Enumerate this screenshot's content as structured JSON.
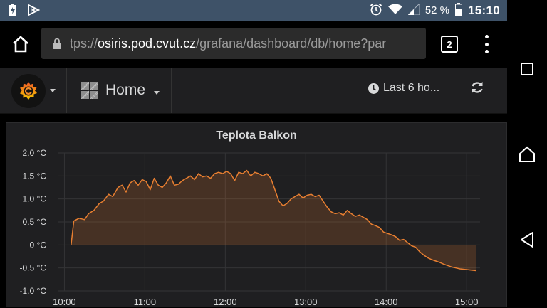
{
  "status_bar": {
    "battery_percent": "52 %",
    "time": "15:10",
    "left_icons": [
      "battery-charging-icon",
      "download-arrow-icon"
    ],
    "right_icons": [
      "alarm-icon",
      "wifi-icon",
      "signal-icon",
      "battery-icon"
    ]
  },
  "browser": {
    "url_prefix": "tps://",
    "url_host": "osiris.pod.cvut.cz",
    "url_path": "/grafana/dashboard/db/home?par",
    "tab_count": "2"
  },
  "grafana": {
    "dashboard_name": "Home",
    "time_range": "Last 6 ho...",
    "panel_title": "Teplota Balkon"
  },
  "colors": {
    "series": "#e87f31",
    "background": "#1f1f21",
    "status_bar": "#3e5268"
  },
  "chart_data": {
    "type": "area",
    "title": "Teplota Balkon",
    "xlabel": "",
    "ylabel": "",
    "y_tick_labels": [
      "2.0 °C",
      "1.5 °C",
      "1.0 °C",
      "0.5 °C",
      "0 °C",
      "-0.5 °C",
      "-1.0 °C"
    ],
    "y_ticks": [
      2.0,
      1.5,
      1.0,
      0.5,
      0.0,
      -0.5,
      -1.0
    ],
    "x_tick_labels": [
      "10:00",
      "11:00",
      "12:00",
      "13:00",
      "14:00",
      "15:00"
    ],
    "x_ticks": [
      "10:00",
      "11:00",
      "12:00",
      "13:00",
      "14:00",
      "15:00"
    ],
    "ylim": [
      -1.0,
      2.0
    ],
    "xlim": [
      "09:55",
      "15:10"
    ],
    "grid": true,
    "series": [
      {
        "x": [
          "10:05",
          "10:07",
          "10:11",
          "10:15",
          "10:18",
          "10:22",
          "10:26",
          "10:29",
          "10:33",
          "10:36",
          "10:40",
          "10:43",
          "10:46",
          "10:49",
          "10:52",
          "10:55",
          "10:58",
          "11:01",
          "11:04",
          "11:07",
          "11:10",
          "11:13",
          "11:16",
          "11:19",
          "11:22",
          "11:25",
          "11:28",
          "11:31",
          "11:34",
          "11:37",
          "11:40",
          "11:43",
          "11:46",
          "11:49",
          "11:52",
          "11:55",
          "11:58",
          "12:01",
          "12:04",
          "12:07",
          "12:10",
          "12:13",
          "12:16",
          "12:19",
          "12:22",
          "12:25",
          "12:28",
          "12:31",
          "12:34",
          "12:37",
          "12:40",
          "12:43",
          "12:46",
          "12:49",
          "12:52",
          "12:55",
          "12:58",
          "13:01",
          "13:04",
          "13:07",
          "13:10",
          "13:13",
          "13:16",
          "13:19",
          "13:22",
          "13:25",
          "13:28",
          "13:31",
          "13:34",
          "13:37",
          "13:40",
          "13:43",
          "13:46",
          "13:49",
          "13:52",
          "13:55",
          "13:58",
          "14:01",
          "14:04",
          "14:07",
          "14:10",
          "14:13",
          "14:16",
          "14:19",
          "14:22",
          "14:25",
          "14:28",
          "14:31",
          "14:34",
          "14:37",
          "14:40",
          "14:43",
          "14:46",
          "14:49",
          "14:52",
          "14:55",
          "14:58",
          "15:01",
          "15:04",
          "15:07"
        ],
        "y": [
          0.0,
          0.52,
          0.58,
          0.55,
          0.68,
          0.75,
          0.9,
          0.95,
          1.1,
          1.05,
          1.25,
          1.3,
          1.15,
          1.35,
          1.4,
          1.3,
          1.42,
          1.38,
          1.2,
          1.45,
          1.3,
          1.25,
          1.35,
          1.5,
          1.3,
          1.32,
          1.4,
          1.45,
          1.5,
          1.42,
          1.55,
          1.48,
          1.5,
          1.45,
          1.55,
          1.58,
          1.55,
          1.6,
          1.55,
          1.4,
          1.58,
          1.55,
          1.62,
          1.5,
          1.58,
          1.55,
          1.5,
          1.55,
          1.45,
          1.2,
          0.95,
          0.85,
          0.9,
          1.0,
          1.05,
          1.1,
          1.02,
          1.08,
          1.1,
          1.05,
          1.08,
          0.95,
          0.82,
          0.72,
          0.68,
          0.7,
          0.65,
          0.75,
          0.68,
          0.62,
          0.65,
          0.6,
          0.55,
          0.45,
          0.42,
          0.38,
          0.28,
          0.25,
          0.22,
          0.18,
          0.1,
          0.12,
          0.05,
          -0.02,
          -0.05,
          -0.15,
          -0.22,
          -0.28,
          -0.32,
          -0.35,
          -0.38,
          -0.42,
          -0.45,
          -0.48,
          -0.5,
          -0.52,
          -0.53,
          -0.54,
          -0.55,
          -0.56
        ]
      }
    ]
  }
}
